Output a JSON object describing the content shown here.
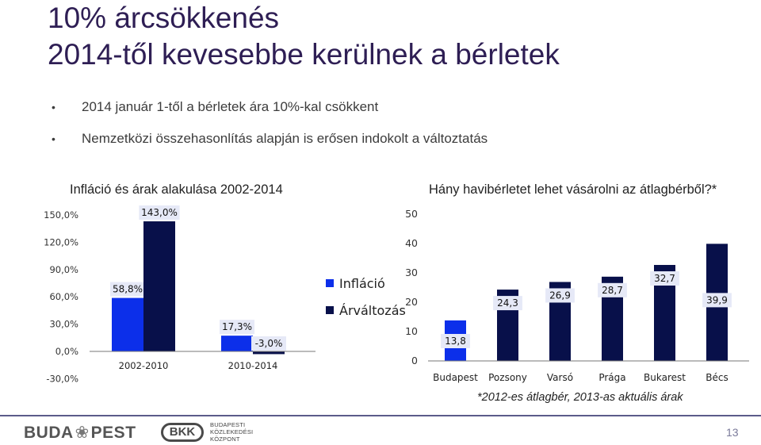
{
  "slide": {
    "title_line1": "10% árcsökkenés",
    "title_line2": "2014-től kevesebbe kerülnek a bérletek",
    "bullets": [
      "2014 január 1-től a bérletek ára 10%-kal csökkent",
      "Nemzetközi összehasonlítás alapján is erősen indokolt a változtatás"
    ],
    "footnote": "*2012-es átlagbér, 2013-as aktuális árak",
    "page_number": "13",
    "logo_budapest_left": "BUDA",
    "logo_budapest_sep": "❀",
    "logo_budapest_right": "PEST",
    "bkk_badge": "BKK",
    "bkk_text": [
      "BUDAPESTI",
      "KÖZLEKEDÉSI",
      "KÖZPONT"
    ]
  },
  "colors": {
    "title": "#2e1e54",
    "inflation": "#0c2fea",
    "price": "#08104a",
    "label_box": "#e6e9f7"
  },
  "chart_data": [
    {
      "type": "bar",
      "title": "Infláció és árak alakulása 2002-2014",
      "categories": [
        "2002-2010",
        "2010-2014"
      ],
      "series": [
        {
          "name": "Infláció",
          "values": [
            58.8,
            17.3
          ],
          "labels": [
            "58,8%",
            "17,3%"
          ]
        },
        {
          "name": "Árváltozás",
          "values": [
            143.0,
            -3.0
          ],
          "labels": [
            "143,0%",
            "-3,0%"
          ]
        }
      ],
      "ylim": [
        -30,
        150
      ],
      "yticks": [
        -30,
        0,
        30,
        60,
        90,
        120,
        150
      ],
      "ytick_labels": [
        "-30,0%",
        "0,0%",
        "30,0%",
        "60,0%",
        "90,0%",
        "120,0%",
        "150,0%"
      ],
      "legend_position": "right",
      "grid": false
    },
    {
      "type": "bar",
      "title": "Hány havibérletet lehet vásárolni az átlagbérből?*",
      "categories": [
        "Budapest",
        "Pozsony",
        "Varsó",
        "Prága",
        "Bukarest",
        "Bécs"
      ],
      "values": [
        13.8,
        24.3,
        26.9,
        28.7,
        32.7,
        39.9
      ],
      "labels": [
        "13,8",
        "24,3",
        "26,9",
        "28,7",
        "32,7",
        "39,9"
      ],
      "ylim": [
        0,
        50
      ],
      "yticks": [
        0,
        10,
        20,
        30,
        40,
        50
      ],
      "ytick_labels": [
        "0",
        "10",
        "20",
        "30",
        "40",
        "50"
      ],
      "grid": false
    }
  ]
}
